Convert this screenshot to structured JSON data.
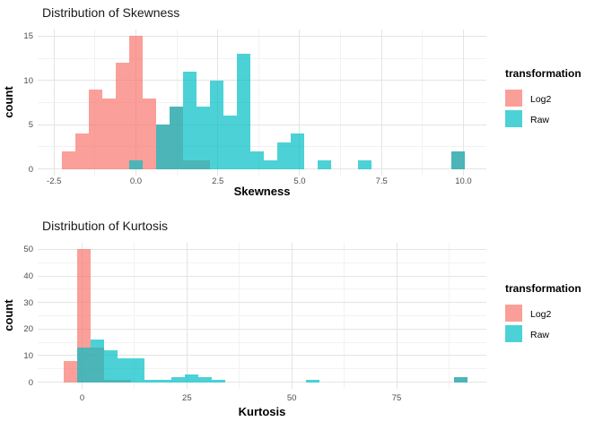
{
  "legend": {
    "title": "transformation",
    "items": [
      {
        "label": "Log2",
        "swatch_color": "#FA9F98"
      },
      {
        "label": "Raw",
        "swatch_color": "#4CD2D6"
      }
    ]
  },
  "chart_data": [
    {
      "type": "bar",
      "subtype": "overlapping-histogram",
      "title": "Distribution of Skewness",
      "xlabel": "Skewness",
      "ylabel": "count",
      "legend_title": "transformation",
      "legend_position": "right",
      "grid": "on",
      "bin_start": -2.25,
      "bin_width": 0.41,
      "x_range": [
        -3.0,
        10.7
      ],
      "y_range": [
        -0.75,
        15.75
      ],
      "x_ticks": [
        -2.5,
        0,
        2.5,
        5,
        7.5,
        10
      ],
      "x_tick_labels": [
        "-2.5",
        "0.0",
        "2.5",
        "5.0",
        "7.5",
        "10.0"
      ],
      "x_minor": [
        -1.25,
        1.25,
        3.75,
        6.25,
        8.75
      ],
      "y_ticks": [
        0,
        5,
        10,
        15
      ],
      "y_tick_labels": [
        "0",
        "5",
        "10",
        "15"
      ],
      "y_minor": [
        2.5,
        7.5,
        12.5
      ],
      "series": [
        {
          "name": "Log2",
          "base_color": "#F8766D",
          "fill": "rgba(248,118,109,0.7)",
          "counts": [
            2,
            4,
            9,
            8,
            12,
            15,
            8,
            5,
            7,
            1,
            1,
            0,
            0,
            0,
            0,
            0,
            0,
            0,
            0,
            0,
            0,
            0,
            0,
            0,
            0,
            0,
            0,
            0,
            0,
            2
          ]
        },
        {
          "name": "Raw",
          "base_color": "#00BFC4",
          "fill": "rgba(0,191,196,0.7)",
          "counts": [
            0,
            0,
            0,
            0,
            0,
            1,
            0,
            5,
            7,
            11,
            7,
            10,
            6,
            13,
            2,
            1,
            3,
            4,
            0,
            1,
            0,
            0,
            1,
            0,
            0,
            0,
            0,
            0,
            0,
            2
          ]
        }
      ]
    },
    {
      "type": "bar",
      "subtype": "overlapping-histogram",
      "title": "Distribution of Kurtosis",
      "xlabel": "Kurtosis",
      "ylabel": "count",
      "legend_title": "transformation",
      "legend_position": "right",
      "grid": "on",
      "bin_start": -4.5,
      "bin_width": 3.21,
      "x_range": [
        -10.6,
        96.4
      ],
      "y_range": [
        -2.5,
        52.5
      ],
      "x_ticks": [
        0,
        25,
        50,
        75
      ],
      "x_tick_labels": [
        "0",
        "25",
        "50",
        "75"
      ],
      "x_minor": [
        12.5,
        37.5,
        62.5,
        87.5
      ],
      "y_ticks": [
        0,
        10,
        20,
        30,
        40,
        50
      ],
      "y_tick_labels": [
        "0",
        "10",
        "20",
        "30",
        "40",
        "50"
      ],
      "y_minor": [
        5,
        15,
        25,
        35,
        45
      ],
      "series": [
        {
          "name": "Log2",
          "base_color": "#F8766D",
          "fill": "rgba(248,118,109,0.7)",
          "counts": [
            8,
            50,
            13,
            1,
            1,
            0,
            0,
            0,
            0,
            0,
            0,
            0,
            0,
            0,
            0,
            0,
            0,
            0,
            0,
            0,
            0,
            0,
            0,
            0,
            0,
            0,
            0,
            0,
            0,
            2
          ]
        },
        {
          "name": "Raw",
          "base_color": "#00BFC4",
          "fill": "rgba(0,191,196,0.7)",
          "counts": [
            0,
            13,
            16,
            12,
            9,
            9,
            1,
            1,
            2,
            3,
            2,
            1,
            0,
            0,
            0,
            0,
            0,
            0,
            1,
            0,
            0,
            0,
            0,
            0,
            0,
            0,
            0,
            0,
            0,
            2
          ]
        }
      ]
    }
  ]
}
